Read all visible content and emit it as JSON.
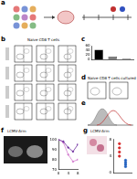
{
  "panels": {
    "a": {
      "label": "a"
    },
    "b": {
      "label": "b",
      "title": "Naïve CD8 T cells"
    },
    "c": {
      "label": "c"
    },
    "d": {
      "label": "d",
      "title": "Naïve CD8 T cells cultured with"
    },
    "e": {
      "label": "e"
    },
    "f": {
      "label": "f",
      "title": "LCMV-Arm"
    },
    "g": {
      "label": "g",
      "title": "LCMV-Arm"
    }
  },
  "chart_data": [
    {
      "type": "bar",
      "categories": [
        null,
        null,
        null
      ],
      "values": [
        42,
        12,
        3
      ],
      "colors": [
        "#000000",
        "#7f7f7f",
        "#d9d9d9"
      ],
      "ylim": [
        0,
        60
      ],
      "yticks": [
        0,
        20,
        40,
        60
      ],
      "grid": false
    },
    {
      "type": "line",
      "x": [
        0,
        2,
        4,
        6,
        8
      ],
      "series": [
        {
          "color": "#7030a0",
          "values": [
            100,
            98,
            92,
            88,
            95
          ]
        },
        {
          "color": "#d47fd0",
          "values": [
            100,
            97,
            85,
            78,
            80
          ]
        }
      ],
      "xlim": [
        0,
        8
      ],
      "xticks": [
        0,
        4,
        8
      ],
      "ylim": [
        70,
        100
      ],
      "yticks": [
        70,
        80,
        90,
        100
      ],
      "grid": false
    },
    {
      "type": "scatter",
      "series": [
        {
          "color": "#d62728",
          "x": [
            1,
            1,
            1,
            1
          ],
          "values": [
            5,
            6,
            4,
            7
          ]
        },
        {
          "color": "#1f5fbf",
          "x": [
            2,
            2,
            2,
            2
          ],
          "values": [
            2,
            3,
            1.5,
            2.5
          ]
        }
      ],
      "xlim": [
        0,
        3
      ],
      "xticks": [
        0,
        1,
        2,
        3
      ],
      "ylim": [
        0,
        8
      ],
      "yticks": [
        0,
        4,
        8
      ],
      "grid": false,
      "tick_labels": "y"
    }
  ]
}
